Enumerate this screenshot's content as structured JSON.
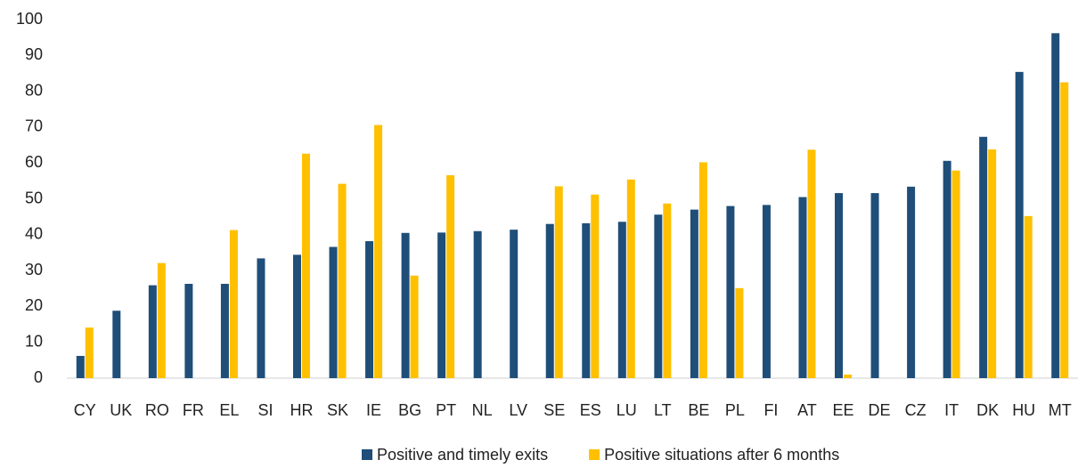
{
  "chart_data": {
    "type": "bar",
    "categories": [
      "CY",
      "UK",
      "RO",
      "FR",
      "EL",
      "SI",
      "HR",
      "SK",
      "IE",
      "BG",
      "PT",
      "NL",
      "LV",
      "SE",
      "ES",
      "LU",
      "LT",
      "BE",
      "PL",
      "FI",
      "AT",
      "EE",
      "DE",
      "CZ",
      "IT",
      "DK",
      "HU",
      "MT"
    ],
    "series": [
      {
        "name": "Positive and timely exits",
        "color": "#1f4e79",
        "values": [
          6.2,
          18.8,
          25.9,
          26.3,
          26.3,
          33.4,
          34.4,
          36.6,
          38.2,
          40.5,
          40.6,
          41.0,
          41.4,
          43.0,
          43.2,
          43.6,
          45.6,
          47.0,
          48.0,
          48.3,
          50.5,
          51.6,
          51.6,
          53.4,
          60.6,
          67.3,
          85.4,
          96.2
        ]
      },
      {
        "name": "Positive situations after 6 months",
        "color": "#ffc000",
        "values": [
          14.1,
          null,
          32.1,
          null,
          41.3,
          null,
          62.6,
          54.2,
          70.6,
          28.6,
          56.6,
          null,
          null,
          53.5,
          51.2,
          55.4,
          48.7,
          60.2,
          25.1,
          null,
          63.7,
          1.0,
          null,
          null,
          57.9,
          63.8,
          45.2,
          82.5
        ]
      }
    ],
    "ylim": [
      0,
      100
    ],
    "yticks": [
      0,
      10,
      20,
      30,
      40,
      50,
      60,
      70,
      80,
      90,
      100
    ],
    "grid": false,
    "legend": "bottom"
  }
}
